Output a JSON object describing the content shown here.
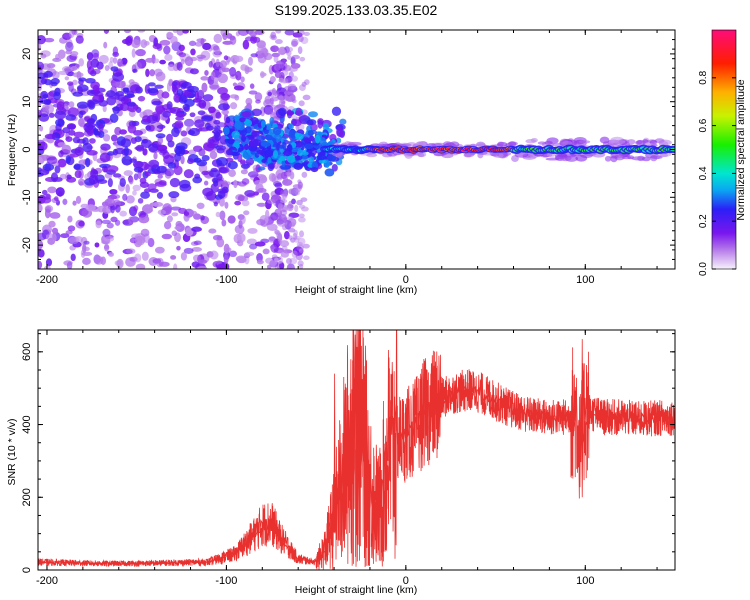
{
  "figure_title": "S199.2025.133.03.35.E02",
  "colors": {
    "snr_line": "#e8302e",
    "frame": "#000000"
  },
  "chart_data": [
    {
      "type": "heatmap",
      "title": "S199.2025.133.03.35.E02",
      "xlabel": "Height of straight line (km)",
      "ylabel": "Frequency (Hz)",
      "xlim": [
        -205,
        150
      ],
      "ylim": [
        -25,
        25
      ],
      "xticks": [
        -200,
        -100,
        0,
        100
      ],
      "yticks": [
        -20,
        -10,
        0,
        10,
        20
      ],
      "colorscale": "rainbow (purple-blue-cyan-green-yellow-red-magenta)",
      "colorbar": {
        "label": "Normalized spectral amplitude",
        "range": [
          0.0,
          1.0
        ],
        "ticks": [
          0.0,
          0.2,
          0.4,
          0.6,
          0.8
        ]
      },
      "features": [
        {
          "x_range": [
            -205,
            -60
          ],
          "frequency_range": [
            -25,
            25
          ],
          "amplitude": 0.05
        },
        {
          "x_range": [
            -100,
            -40
          ],
          "frequency_range": [
            -6,
            6
          ],
          "amplitude": 0.2
        },
        {
          "x_range": [
            -20,
            60
          ],
          "frequency_range": [
            -0.5,
            0.5
          ],
          "amplitude": 0.9
        },
        {
          "x_range": [
            60,
            150
          ],
          "frequency_range": [
            -1,
            1
          ],
          "amplitude": 0.6
        }
      ]
    },
    {
      "type": "line",
      "xlabel": "Height of straight line (km)",
      "ylabel": "SNR (10 * v/v)",
      "xlim": [
        -205,
        150
      ],
      "ylim": [
        0,
        660
      ],
      "xticks": [
        -200,
        -100,
        0,
        100
      ],
      "yticks": [
        0,
        200,
        400,
        600
      ],
      "envelope": {
        "x": [
          -205,
          -190,
          -170,
          -150,
          -130,
          -110,
          -95,
          -85,
          -80,
          -75,
          -70,
          -60,
          -50,
          -45,
          -40,
          -35,
          -30,
          -27,
          -25,
          -20,
          -15,
          -10,
          -5,
          0,
          5,
          10,
          15,
          20,
          25,
          30,
          35,
          40,
          45,
          50,
          55,
          60,
          70,
          80,
          90,
          95,
          97,
          100,
          105,
          110,
          120,
          130,
          140,
          150
        ],
        "y": [
          22,
          20,
          18,
          18,
          20,
          22,
          45,
          95,
          125,
          130,
          90,
          30,
          22,
          60,
          140,
          260,
          380,
          460,
          390,
          230,
          160,
          300,
          360,
          370,
          390,
          430,
          450,
          470,
          485,
          490,
          495,
          490,
          478,
          465,
          452,
          440,
          425,
          420,
          420,
          440,
          330,
          440,
          430,
          420,
          420,
          415,
          418,
          420
        ]
      },
      "peaks": [
        {
          "x": -28,
          "y": 660
        },
        {
          "x": -40,
          "y": 540
        },
        {
          "x": -10,
          "y": 605
        },
        {
          "x": 98,
          "y": 635
        },
        {
          "x": 98,
          "y": 200
        }
      ]
    }
  ]
}
